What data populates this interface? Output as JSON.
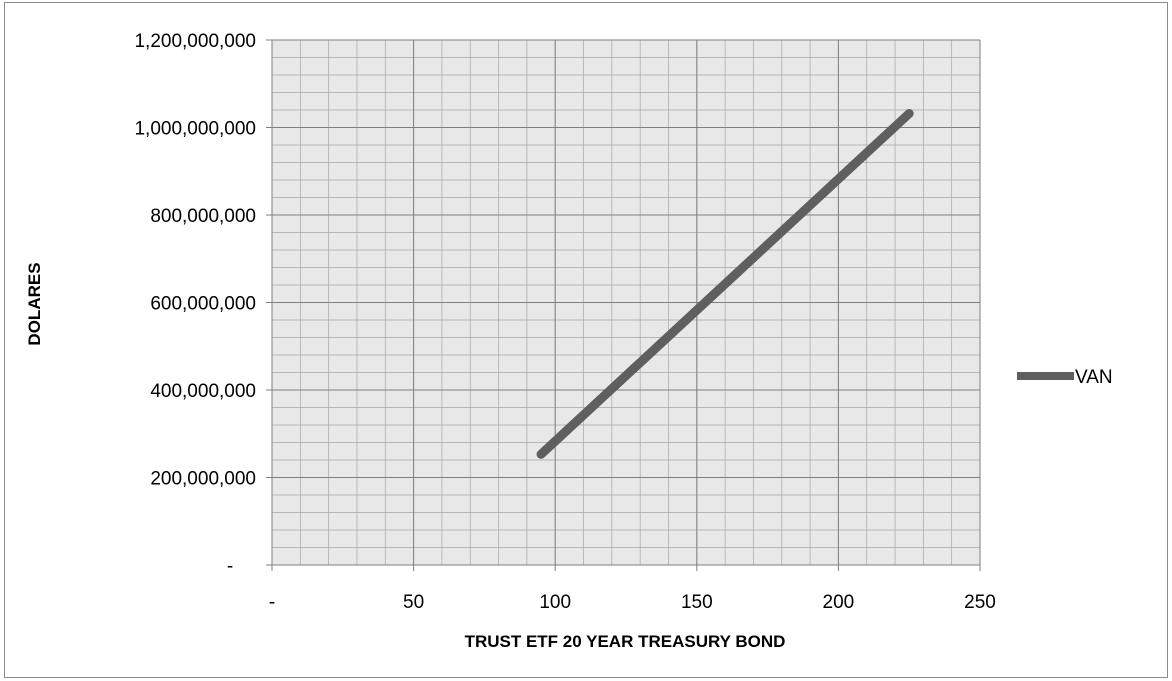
{
  "chart_data": {
    "type": "line",
    "xlabel": "TRUST ETF  20 YEAR TREASURY BOND",
    "ylabel": "DOLARES",
    "xlim": [
      0,
      250
    ],
    "ylim": [
      0,
      1200000000
    ],
    "x_ticks": [
      {
        "value": 0,
        "label": "-"
      },
      {
        "value": 50,
        "label": "50"
      },
      {
        "value": 100,
        "label": "100"
      },
      {
        "value": 150,
        "label": "150"
      },
      {
        "value": 200,
        "label": "200"
      },
      {
        "value": 250,
        "label": "250"
      }
    ],
    "y_ticks": [
      {
        "value": 0,
        "label": "-"
      },
      {
        "value": 200000000,
        "label": "200,000,000"
      },
      {
        "value": 400000000,
        "label": "400,000,000"
      },
      {
        "value": 600000000,
        "label": "600,000,000"
      },
      {
        "value": 800000000,
        "label": "800,000,000"
      },
      {
        "value": 1000000000,
        "label": "1,000,000,000"
      },
      {
        "value": 1200000000,
        "label": "1,200,000,000"
      }
    ],
    "grid": "major and minor",
    "legend_position": "right",
    "series": [
      {
        "name": "VAN",
        "color": "#5f5f5f",
        "x": [
          95,
          225
        ],
        "y": [
          253000000,
          1032000000
        ]
      }
    ]
  }
}
